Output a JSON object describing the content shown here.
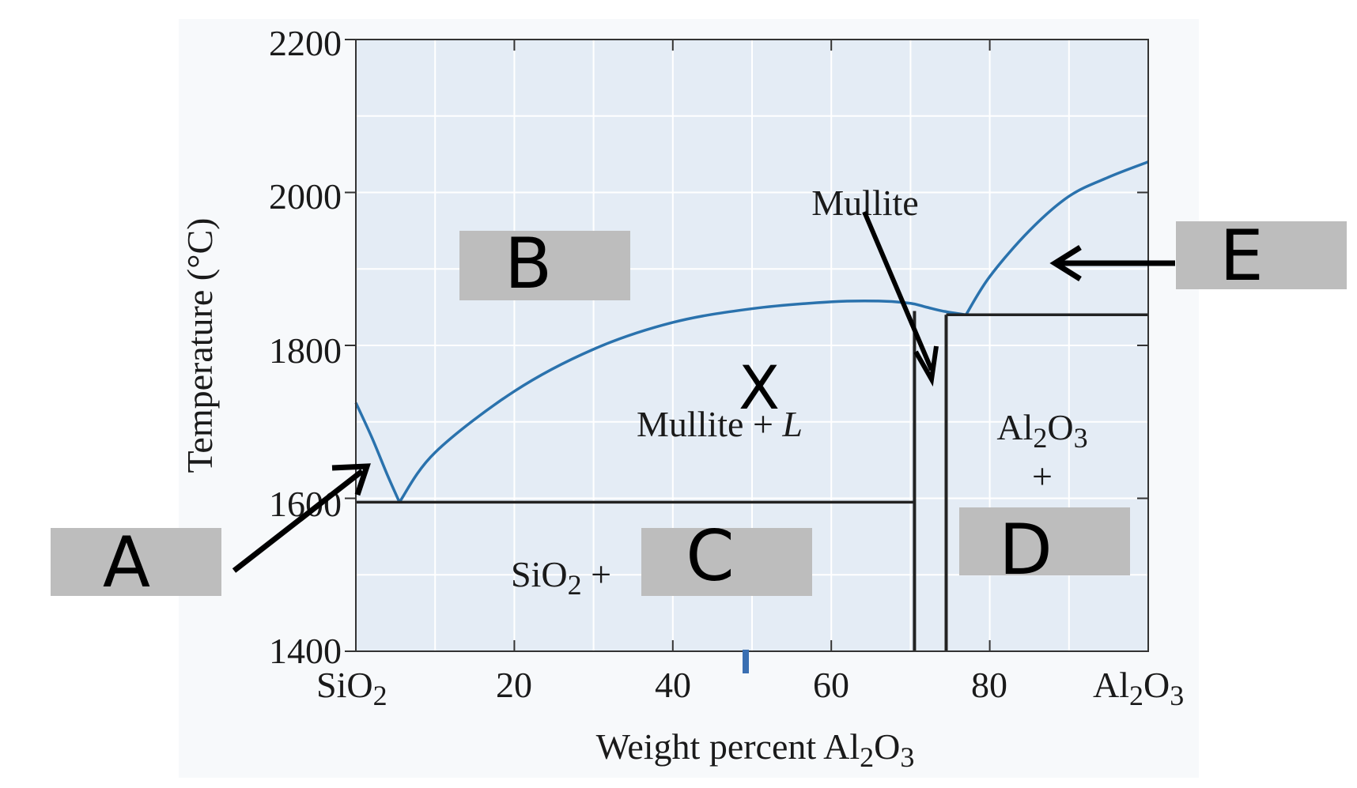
{
  "chart_data": {
    "type": "phase-diagram",
    "xlabel": "Weight percent Al2O3",
    "xlabel_parts": [
      "Weight percent Al",
      "2",
      "O",
      "3"
    ],
    "ylabel": "Temperature (°C)",
    "xlim": [
      0,
      100
    ],
    "ylim": [
      1400,
      2200
    ],
    "x_ticks": [
      0,
      20,
      40,
      60,
      80,
      100
    ],
    "x_tick_labels": [
      "SiO2",
      "20",
      "40",
      "60",
      "80",
      "Al2O3"
    ],
    "y_ticks": [
      1400,
      1600,
      1800,
      2000,
      2200
    ],
    "y_tick_labels": [
      "1400",
      "1600",
      "1800",
      "2000",
      "2200"
    ],
    "grid": true,
    "liquidus": {
      "sio2_side": [
        [
          0,
          1725
        ],
        [
          2,
          1680
        ],
        [
          4,
          1630
        ],
        [
          5.5,
          1595
        ]
      ],
      "mullite_side": [
        [
          5.5,
          1595
        ],
        [
          10,
          1660
        ],
        [
          20,
          1740
        ],
        [
          30,
          1795
        ],
        [
          40,
          1830
        ],
        [
          50,
          1848
        ],
        [
          60,
          1857
        ],
        [
          66,
          1858
        ],
        [
          70,
          1855
        ],
        [
          72,
          1850
        ],
        [
          74,
          1845
        ],
        [
          77,
          1840
        ]
      ],
      "alumina_side": [
        [
          77,
          1840
        ],
        [
          80,
          1890
        ],
        [
          85,
          1950
        ],
        [
          90,
          1995
        ],
        [
          95,
          2020
        ],
        [
          100,
          2040
        ]
      ]
    },
    "eutectic_isotherm_left": {
      "x": [
        0,
        70.5
      ],
      "t": 1595
    },
    "eutectic_isotherm_right": {
      "x": [
        74.5,
        100
      ],
      "t": 1840
    },
    "mullite_boundaries": [
      {
        "x": 70.5,
        "t": [
          1400,
          1845
        ]
      },
      {
        "x": 74.5,
        "t": [
          1400,
          1840
        ]
      }
    ],
    "region_labels": {
      "mullite_l": "Mullite + L",
      "sio2_plus": "SiO2 +",
      "al2o3": "Al2O3",
      "plus": "+",
      "mullite": "Mullite"
    },
    "colors": {
      "liquidus": "#2a72ad",
      "plot_bg": "#e4ecf5",
      "grid": "#ffffff",
      "solidus": "#222222",
      "answer_box": "#bdbdbd"
    }
  },
  "annotations": {
    "A": "A",
    "B": "B",
    "C": "C",
    "D": "D",
    "E": "E",
    "X": "X"
  }
}
